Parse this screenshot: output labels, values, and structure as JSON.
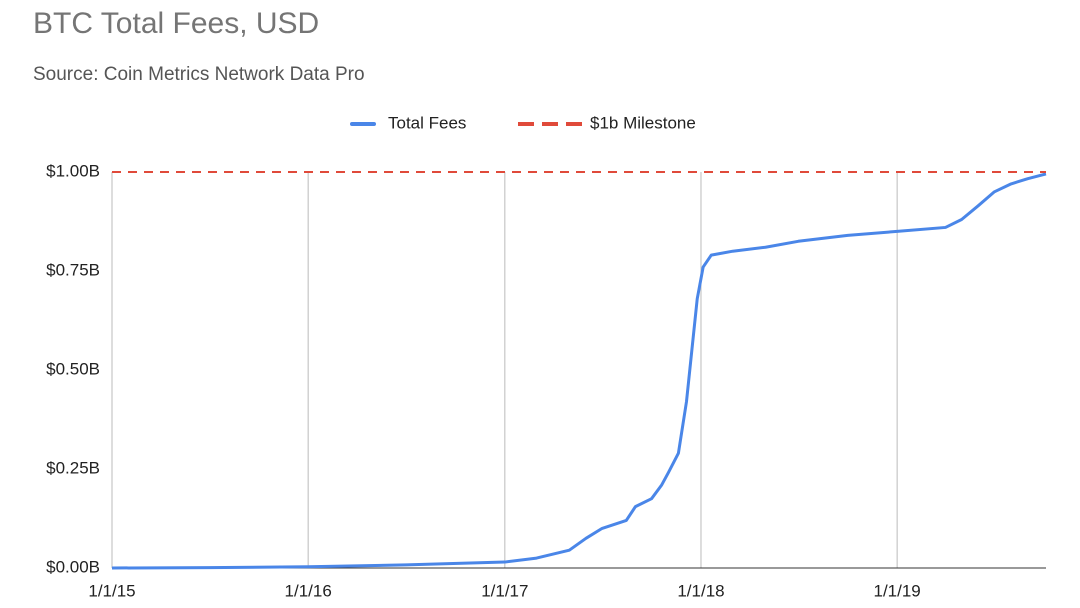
{
  "chart_data": {
    "type": "line",
    "title": "BTC Total Fees, USD",
    "subtitle": "Source: Coin Metrics Network Data Pro",
    "legend": "top",
    "grid": true,
    "series": [
      {
        "name": "Total Fees",
        "color": "#4a86e8",
        "dashed": false,
        "x": [
          "2015-01-01",
          "2015-07-01",
          "2016-01-01",
          "2016-07-01",
          "2017-01-01",
          "2017-03-01",
          "2017-05-01",
          "2017-06-01",
          "2017-07-01",
          "2017-08-15",
          "2017-09-01",
          "2017-10-01",
          "2017-10-20",
          "2017-11-01",
          "2017-11-20",
          "2017-12-05",
          "2017-12-15",
          "2017-12-25",
          "2018-01-05",
          "2018-01-20",
          "2018-03-01",
          "2018-05-01",
          "2018-07-01",
          "2018-10-01",
          "2019-01-01",
          "2019-04-01",
          "2019-05-01",
          "2019-06-01",
          "2019-07-01",
          "2019-08-01",
          "2019-09-01",
          "2019-10-05"
        ],
        "values": [
          0,
          1000000,
          3000000,
          8000000,
          15000000,
          25000000,
          45000000,
          75000000,
          100000000,
          120000000,
          155000000,
          175000000,
          210000000,
          240000000,
          290000000,
          420000000,
          550000000,
          680000000,
          760000000,
          790000000,
          800000000,
          810000000,
          825000000,
          840000000,
          850000000,
          860000000,
          880000000,
          915000000,
          950000000,
          970000000,
          983000000,
          995000000
        ]
      },
      {
        "name": "$1b Milestone",
        "color": "#e04a3a",
        "dashed": true,
        "x": [
          "2015-01-01",
          "2019-10-05"
        ],
        "values": [
          1000000000,
          1000000000
        ]
      }
    ],
    "xlim": [
      "2015-01-01",
      "2019-10-05"
    ],
    "xticks": [
      {
        "value": "2015-01-01",
        "label": "1/1/15"
      },
      {
        "value": "2016-01-01",
        "label": "1/1/16"
      },
      {
        "value": "2017-01-01",
        "label": "1/1/17"
      },
      {
        "value": "2018-01-01",
        "label": "1/1/18"
      },
      {
        "value": "2019-01-01",
        "label": "1/1/19"
      }
    ],
    "ylim": [
      0,
      1000000000
    ],
    "yticks": [
      {
        "value": 0,
        "label": "$0.00B"
      },
      {
        "value": 250000000,
        "label": "$0.25B"
      },
      {
        "value": 500000000,
        "label": "$0.50B"
      },
      {
        "value": 750000000,
        "label": "$0.75B"
      },
      {
        "value": 1000000000,
        "label": "$1.00B"
      }
    ]
  }
}
